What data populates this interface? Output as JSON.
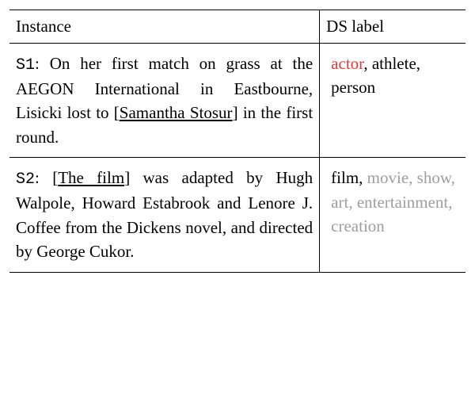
{
  "headers": {
    "instance": "Instance",
    "label": "DS label"
  },
  "rows": [
    {
      "sid": "S1",
      "text_before": ": On her first match on grass at the AEGON International in Eastbourne, Lisicki lost to [",
      "entity": "Samantha Stosur",
      "text_after": "] in the first round.",
      "labels": [
        {
          "text": "actor",
          "style": "red"
        },
        {
          "text": ", athlete, person",
          "style": "normal"
        }
      ]
    },
    {
      "sid": "S2",
      "text_before": ": [",
      "entity": "The film",
      "text_after": "] was adapted by Hugh Walpole, Howard Estabrook and Lenore J. Coffee from the Dickens novel, and directed by George Cukor.",
      "labels": [
        {
          "text": "film,",
          "style": "normal"
        },
        {
          "text": " movie, show, art, entertainment, creation",
          "style": "gray"
        }
      ]
    }
  ],
  "colors": {
    "red": "#e53935",
    "gray": "#9e9e9e",
    "black": "#000000",
    "background": "#ffffff"
  },
  "fonts": {
    "body_size": 21,
    "mono_family": "Courier New"
  }
}
